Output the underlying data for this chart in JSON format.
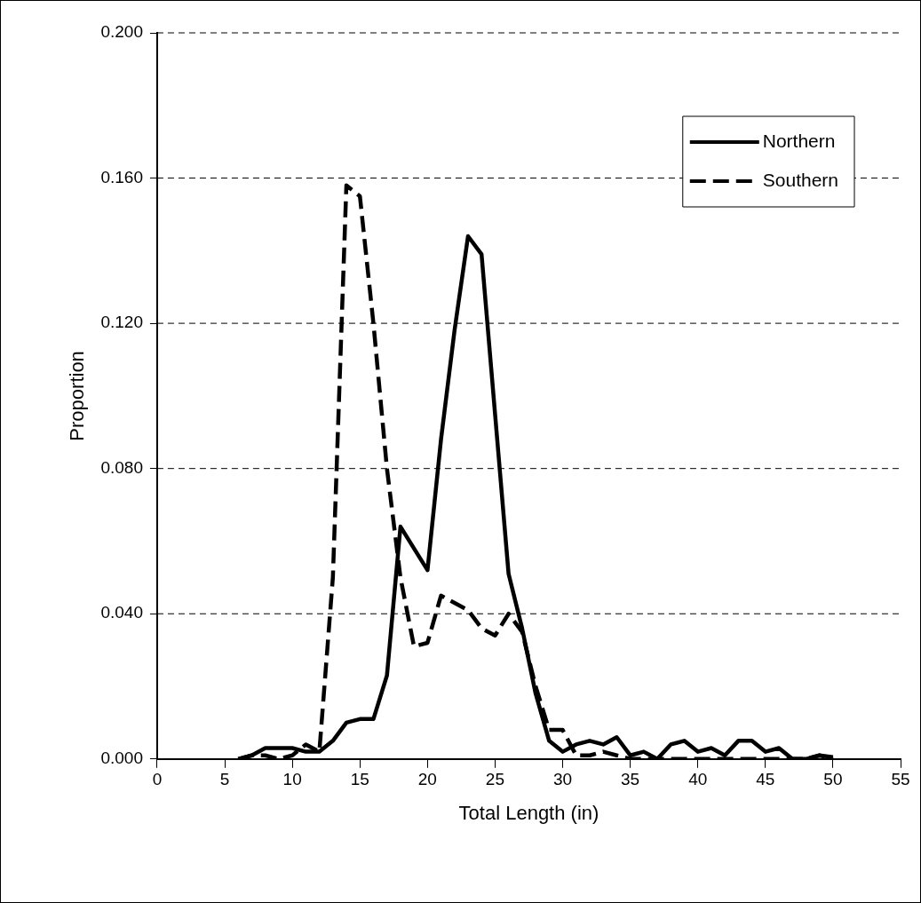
{
  "chart_data": {
    "type": "line",
    "xlabel": "Total Length (in)",
    "ylabel": "Proportion",
    "x": [
      6,
      7,
      8,
      9,
      10,
      11,
      12,
      13,
      14,
      15,
      16,
      17,
      18,
      19,
      20,
      21,
      22,
      23,
      24,
      25,
      26,
      27,
      28,
      29,
      30,
      31,
      32,
      33,
      34,
      35,
      36,
      37,
      38,
      39,
      40,
      41,
      42,
      43,
      44,
      45,
      46,
      47,
      48,
      49,
      50
    ],
    "series": [
      {
        "name": "Northern",
        "color": "#000000",
        "line_style": "solid",
        "values": [
          0,
          0.001,
          0.003,
          0.003,
          0.003,
          0.002,
          0.002,
          0.005,
          0.01,
          0.011,
          0.011,
          0.023,
          0.064,
          0.058,
          0.052,
          0.088,
          0.118,
          0.144,
          0.139,
          0.095,
          0.051,
          0.036,
          0.018,
          0.005,
          0.002,
          0.004,
          0.005,
          0.004,
          0.006,
          0.001,
          0.002,
          0,
          0.004,
          0.005,
          0.002,
          0.003,
          0.001,
          0.005,
          0.005,
          0.002,
          0.003,
          0,
          0,
          0.001,
          0.0005
        ]
      },
      {
        "name": "Southern",
        "color": "#000000",
        "line_style": "dashed",
        "values": [
          0,
          0.001,
          0.001,
          0,
          0.001,
          0.004,
          0.002,
          0.05,
          0.158,
          0.155,
          0.12,
          0.08,
          0.05,
          0.031,
          0.032,
          0.045,
          0.043,
          0.041,
          0.036,
          0.034,
          0.04,
          0.035,
          0.02,
          0.008,
          0.008,
          0.001,
          0.001,
          0.002,
          0.001,
          0,
          0,
          0,
          0,
          0,
          0,
          0,
          0,
          0,
          0,
          0,
          0,
          0,
          0,
          0.001,
          0
        ]
      }
    ],
    "xlim": [
      0,
      55
    ],
    "xticks": [
      0,
      5,
      10,
      15,
      20,
      25,
      30,
      35,
      40,
      45,
      50,
      55
    ],
    "ylim": [
      0,
      0.2
    ],
    "yticks": [
      {
        "value": 0,
        "label": "0.000"
      },
      {
        "value": 0.04,
        "label": "0.040"
      },
      {
        "value": 0.08,
        "label": "0.080"
      },
      {
        "value": 0.12,
        "label": "0.120"
      },
      {
        "value": 0.16,
        "label": "0.160"
      },
      {
        "value": 0.2,
        "label": "0.200"
      }
    ],
    "grid": "y",
    "legend": "top right",
    "marker": "none"
  }
}
